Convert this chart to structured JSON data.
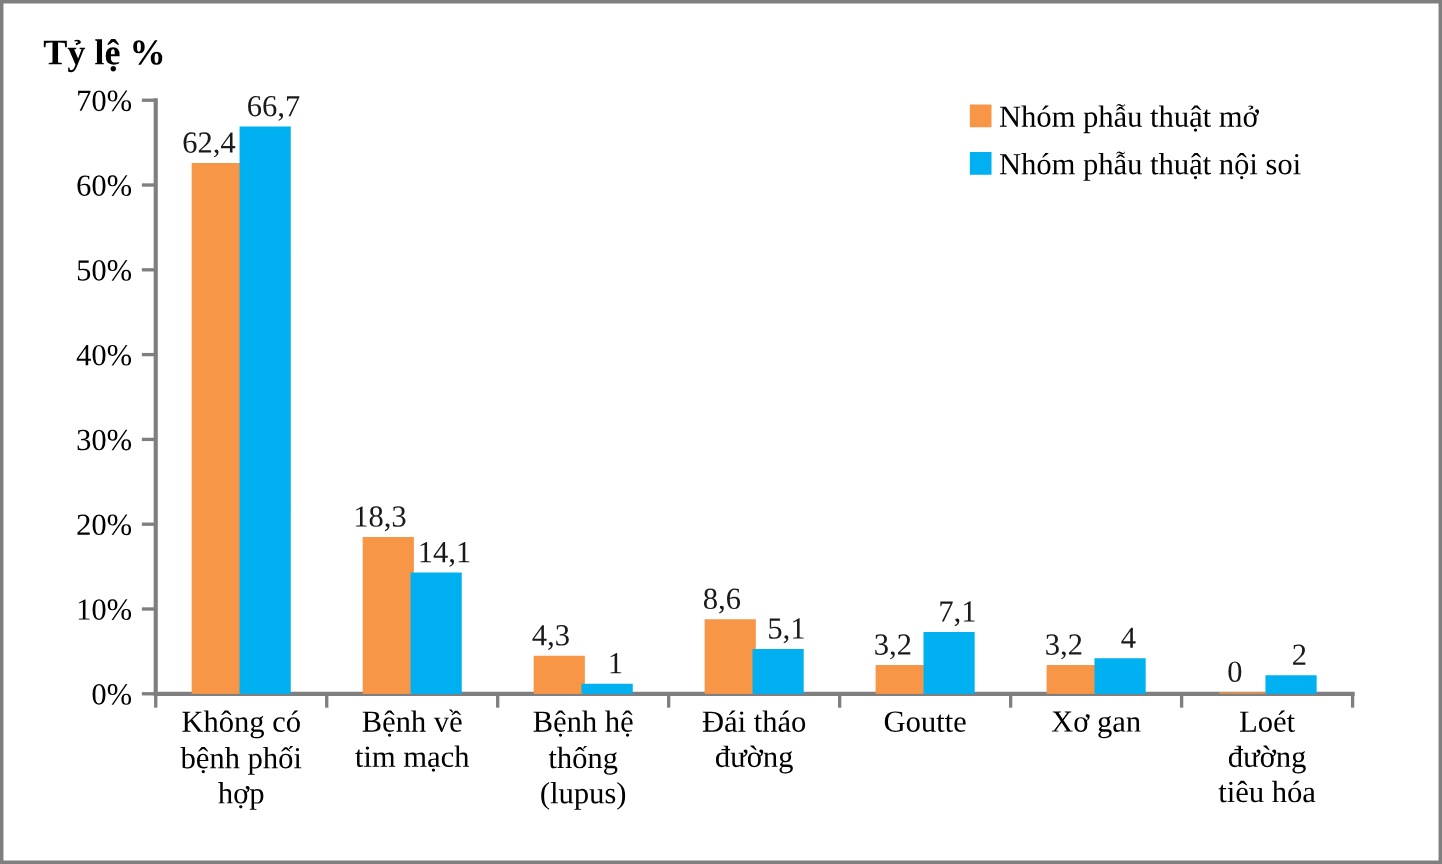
{
  "chart_data": {
    "type": "bar",
    "ylabel": "Tỷ lệ %",
    "categories": [
      "Không có\nbệnh phối\nhợp",
      "Bệnh về\ntim mạch",
      "Bệnh hệ\nthống\n(lupus)",
      "Đái tháo\nđường",
      "Goutte",
      "Xơ gan",
      "Loét\nđường\ntiêu hóa"
    ],
    "series": [
      {
        "name": "Nhóm phẫu thuật mở",
        "color": "#f79646",
        "values": [
          62.4,
          18.3,
          4.3,
          8.6,
          3.2,
          3.2,
          0
        ],
        "value_labels": [
          "62,4",
          "18,3",
          "4,3",
          "8,6",
          "3,2",
          "3,2",
          "0"
        ]
      },
      {
        "name": "Nhóm phẫu thuật nội soi",
        "color": "#00b0f0",
        "values": [
          66.7,
          14.1,
          1,
          5.1,
          7.1,
          4,
          2
        ],
        "value_labels": [
          "66,7",
          "14,1",
          "1",
          "5,1",
          "7,1",
          "4",
          "2"
        ]
      }
    ],
    "ylim": [
      0,
      70
    ],
    "yticks": [
      {
        "value": 0,
        "label": "0%"
      },
      {
        "value": 10,
        "label": "10%"
      },
      {
        "value": 20,
        "label": "20%"
      },
      {
        "value": 30,
        "label": "30%"
      },
      {
        "value": 40,
        "label": "40%"
      },
      {
        "value": 50,
        "label": "50%"
      },
      {
        "value": 60,
        "label": "60%"
      },
      {
        "value": 70,
        "label": "70%"
      }
    ],
    "grid": false,
    "legend": "top right"
  }
}
